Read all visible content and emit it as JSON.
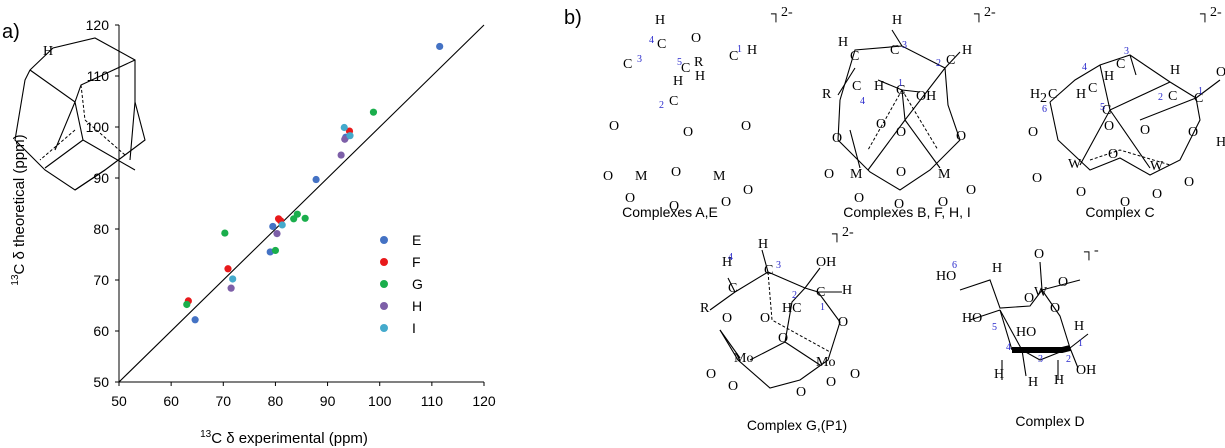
{
  "panel_a_label": "a)",
  "panel_b_label": "b)",
  "chart_data": {
    "type": "scatter",
    "xlabel_sup": "13",
    "xlabel_text": "C δ experimental (ppm)",
    "ylabel_sup": "13",
    "ylabel_text": "C δ theoretical (ppm)",
    "xlim": [
      50,
      120
    ],
    "ylim": [
      50,
      120
    ],
    "xticks": [
      50,
      60,
      70,
      80,
      90,
      100,
      110,
      120
    ],
    "yticks": [
      50,
      60,
      70,
      80,
      90,
      100,
      110,
      120
    ],
    "grid": false,
    "legend_position": "right-center",
    "reference_line": {
      "from": [
        50,
        50
      ],
      "to": [
        120,
        120
      ]
    },
    "series": [
      {
        "name": "E",
        "color": "#4472C4",
        "points": [
          [
            111.5,
            115.8
          ],
          [
            87.8,
            89.7
          ],
          [
            93.5,
            98.0
          ],
          [
            79.5,
            80.5
          ],
          [
            79.0,
            75.5
          ],
          [
            64.6,
            62.2
          ]
        ]
      },
      {
        "name": "F",
        "color": "#E8191B",
        "points": [
          [
            94.2,
            99.2
          ],
          [
            80.6,
            82.0
          ],
          [
            81.0,
            81.6
          ],
          [
            70.9,
            72.2
          ],
          [
            63.3,
            65.9
          ]
        ]
      },
      {
        "name": "G",
        "color": "#1AAE4C",
        "points": [
          [
            98.8,
            102.9
          ],
          [
            70.3,
            79.2
          ],
          [
            84.2,
            82.9
          ],
          [
            85.7,
            82.1
          ],
          [
            80.0,
            75.8
          ],
          [
            63.0,
            65.2
          ],
          [
            83.5,
            82.0
          ]
        ]
      },
      {
        "name": "H",
        "color": "#7D5FA8",
        "points": [
          [
            93.3,
            97.6
          ],
          [
            92.6,
            94.5
          ],
          [
            80.3,
            79.1
          ],
          [
            71.5,
            68.4
          ]
        ]
      },
      {
        "name": "I",
        "color": "#44AACC",
        "points": [
          [
            93.2,
            99.9
          ],
          [
            94.3,
            98.3
          ],
          [
            81.3,
            80.8
          ],
          [
            71.8,
            70.2
          ]
        ]
      }
    ]
  },
  "structures": [
    {
      "caption": "Complexes A,E",
      "charge": "2-"
    },
    {
      "caption": "Complexes B, F, H, I",
      "charge": "2-"
    },
    {
      "caption": "Complex C",
      "charge": "2-"
    },
    {
      "caption": "Complex G,(P1)",
      "charge": "2-"
    },
    {
      "caption": "Complex D",
      "charge": "-"
    }
  ]
}
